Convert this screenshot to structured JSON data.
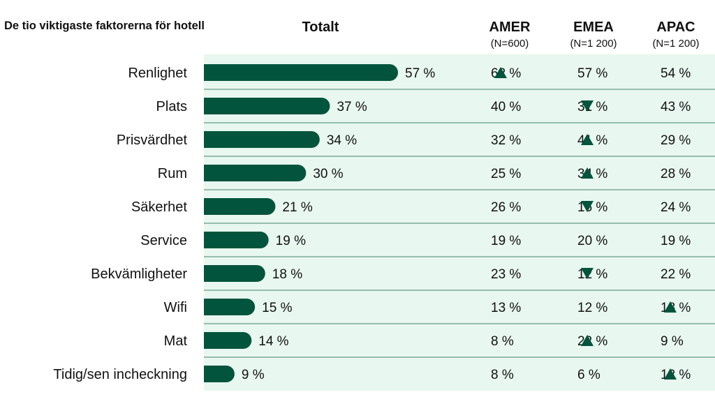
{
  "chart_data": {
    "type": "bar",
    "title": "De tio viktigaste faktorerna för hotell",
    "categories": [
      "Renlighet",
      "Plats",
      "Prisvärdhet",
      "Rum",
      "Säkerhet",
      "Service",
      "Bekvämligheter",
      "Wifi",
      "Mat",
      "Tidig/sen incheckning"
    ],
    "series": [
      {
        "name": "Totalt",
        "values": [
          57,
          37,
          34,
          30,
          21,
          19,
          18,
          15,
          14,
          9
        ]
      }
    ],
    "value_labels": [
      "57 %",
      "37 %",
      "34 %",
      "30 %",
      "21 %",
      "19 %",
      "18 %",
      "15 %",
      "14 %",
      "9 %"
    ],
    "regions": [
      {
        "name": "AMER",
        "n_label": "(N=600)",
        "values": [
          62,
          40,
          32,
          25,
          26,
          19,
          23,
          13,
          8,
          8
        ],
        "labels": [
          "62 %",
          "40 %",
          "32 %",
          "25 %",
          "26 %",
          "19 %",
          "23 %",
          "13 %",
          "8 %",
          "8 %"
        ],
        "markers": [
          "up",
          "",
          "",
          "",
          "",
          "",
          "",
          "",
          "",
          ""
        ]
      },
      {
        "name": "EMEA",
        "n_label": "(N=1 200)",
        "values": [
          57,
          31,
          41,
          34,
          16,
          20,
          12,
          12,
          22,
          6
        ],
        "labels": [
          "57 %",
          "31 %",
          "41 %",
          "34 %",
          "16 %",
          "20 %",
          "12 %",
          "12 %",
          "22 %",
          "6 %"
        ],
        "markers": [
          "",
          "down",
          "up",
          "up",
          "down",
          "",
          "down",
          "",
          "up",
          ""
        ]
      },
      {
        "name": "APAC",
        "n_label": "(N=1 200)",
        "values": [
          54,
          43,
          29,
          28,
          24,
          19,
          22,
          18,
          9,
          12
        ],
        "labels": [
          "54 %",
          "43 %",
          "29 %",
          "28 %",
          "24 %",
          "19 %",
          "22 %",
          "18 %",
          "9 %",
          "12 %"
        ],
        "markers": [
          "",
          "",
          "",
          "",
          "",
          "",
          "",
          "up",
          "",
          "up"
        ]
      }
    ],
    "xlim": [
      0,
      100
    ],
    "grid": false,
    "colors": {
      "bar": "#03543c",
      "marker": "#03543c",
      "panel": "#e8f7f0",
      "divider": "#0d5c3f"
    }
  }
}
